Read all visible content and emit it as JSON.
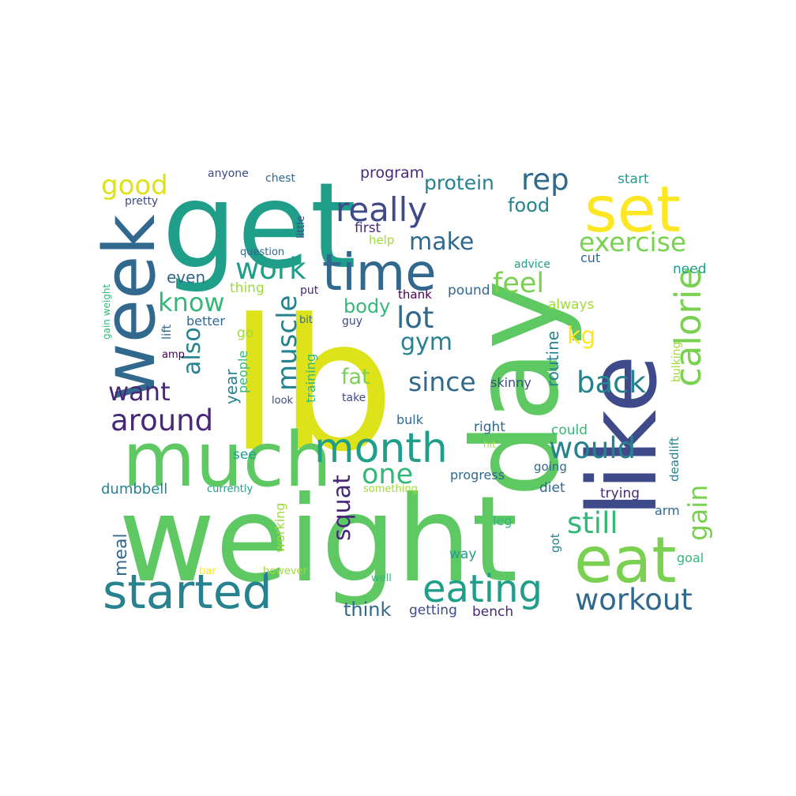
{
  "words": [
    {
      "text": "weight",
      "color": "#5ec962"
    },
    {
      "text": "lb",
      "color": "#dde318"
    },
    {
      "text": "day",
      "color": "#5ec962"
    },
    {
      "text": "get",
      "color": "#1f9e89"
    },
    {
      "text": "like",
      "color": "#3e4a89"
    },
    {
      "text": "much",
      "color": "#5ec962"
    },
    {
      "text": "week",
      "color": "#31688e"
    },
    {
      "text": "set",
      "color": "#fde725"
    },
    {
      "text": "time",
      "color": "#31688e"
    },
    {
      "text": "eat",
      "color": "#7ad151"
    },
    {
      "text": "started",
      "color": "#26828e"
    },
    {
      "text": "month",
      "color": "#1f9e89"
    },
    {
      "text": "calorie",
      "color": "#7ad151"
    },
    {
      "text": "eating",
      "color": "#1f9e89"
    },
    {
      "text": "really",
      "color": "#3e4a89"
    },
    {
      "text": "workout",
      "color": "#31688e"
    },
    {
      "text": "around",
      "color": "#482878"
    },
    {
      "text": "exercise",
      "color": "#7ad151"
    },
    {
      "text": "back",
      "color": "#26828e"
    },
    {
      "text": "would",
      "color": "#26828e"
    },
    {
      "text": "still",
      "color": "#35b779"
    },
    {
      "text": "work",
      "color": "#1f9e89"
    },
    {
      "text": "muscle",
      "color": "#26828e"
    },
    {
      "text": "gain",
      "color": "#7ad151"
    },
    {
      "text": "also",
      "color": "#26828e"
    },
    {
      "text": "know",
      "color": "#35b779"
    },
    {
      "text": "feel",
      "color": "#7ad151"
    },
    {
      "text": "lot",
      "color": "#31688e"
    },
    {
      "text": "rep",
      "color": "#31688e"
    },
    {
      "text": "make",
      "color": "#31688e"
    },
    {
      "text": "one",
      "color": "#35b779"
    },
    {
      "text": "since",
      "color": "#31688e"
    },
    {
      "text": "want",
      "color": "#482878"
    },
    {
      "text": "good",
      "color": "#dde318"
    },
    {
      "text": "gym",
      "color": "#26828e"
    },
    {
      "text": "squat",
      "color": "#482878"
    },
    {
      "text": "protein",
      "color": "#26828e"
    },
    {
      "text": "body",
      "color": "#35b779"
    },
    {
      "text": "fat",
      "color": "#7ad151"
    },
    {
      "text": "kg",
      "color": "#fde725"
    },
    {
      "text": "food",
      "color": "#26828e"
    },
    {
      "text": "think",
      "color": "#31688e"
    },
    {
      "text": "year",
      "color": "#26828e"
    },
    {
      "text": "routine",
      "color": "#26828e"
    },
    {
      "text": "meal",
      "color": "#31688e"
    },
    {
      "text": "even",
      "color": "#31688e"
    },
    {
      "text": "program",
      "color": "#482878"
    },
    {
      "text": "dumbbell",
      "color": "#26828e"
    },
    {
      "text": "bench",
      "color": "#482878"
    },
    {
      "text": "getting",
      "color": "#3e4a89"
    },
    {
      "text": "trying",
      "color": "#482878"
    },
    {
      "text": "progress",
      "color": "#31688e"
    },
    {
      "text": "right",
      "color": "#31688e"
    },
    {
      "text": "skinny",
      "color": "#3e4a89"
    },
    {
      "text": "diet",
      "color": "#31688e"
    },
    {
      "text": "people",
      "color": "#35b779"
    },
    {
      "text": "training",
      "color": "#35b779"
    },
    {
      "text": "working",
      "color": "#a0da39"
    },
    {
      "text": "deadlift",
      "color": "#26828e"
    },
    {
      "text": "arm",
      "color": "#31688e"
    },
    {
      "text": "see",
      "color": "#1f9e89"
    },
    {
      "text": "pound",
      "color": "#31688e"
    },
    {
      "text": "first",
      "color": "#482878"
    },
    {
      "text": "could",
      "color": "#35b779"
    },
    {
      "text": "bulk",
      "color": "#31688e"
    },
    {
      "text": "going",
      "color": "#31688e"
    },
    {
      "text": "way",
      "color": "#1f9e89"
    },
    {
      "text": "got",
      "color": "#26828e"
    },
    {
      "text": "leg",
      "color": "#35b779"
    },
    {
      "text": "go",
      "color": "#a0da39"
    },
    {
      "text": "start",
      "color": "#1f9e89"
    },
    {
      "text": "cut",
      "color": "#31688e"
    },
    {
      "text": "need",
      "color": "#1f9e89"
    },
    {
      "text": "goal",
      "color": "#35b779"
    },
    {
      "text": "always",
      "color": "#a0da39"
    },
    {
      "text": "better",
      "color": "#31688e"
    },
    {
      "text": "thank",
      "color": "#440154"
    },
    {
      "text": "help",
      "color": "#a0da39"
    },
    {
      "text": "thing",
      "color": "#a0da39"
    },
    {
      "text": "bulking",
      "color": "#a0da39"
    },
    {
      "text": "lift",
      "color": "#31688e"
    },
    {
      "text": "anyone",
      "color": "#3e4a89"
    },
    {
      "text": "chest",
      "color": "#31688e"
    },
    {
      "text": "pretty",
      "color": "#3e4a89"
    },
    {
      "text": "little",
      "color": "#3e4a89"
    },
    {
      "text": "question",
      "color": "#31688e"
    },
    {
      "text": "put",
      "color": "#482878"
    },
    {
      "text": "advice",
      "color": "#1f9e89"
    },
    {
      "text": "gain weight",
      "color": "#35b779"
    },
    {
      "text": "bit",
      "color": "#31688e"
    },
    {
      "text": "guy",
      "color": "#3e4a89"
    },
    {
      "text": "amp",
      "color": "#440154"
    },
    {
      "text": "look",
      "color": "#3e4a89"
    },
    {
      "text": "take",
      "color": "#3e4a89"
    },
    {
      "text": "hit",
      "color": "#a0da39"
    },
    {
      "text": "currently",
      "color": "#1f9e89"
    },
    {
      "text": "something",
      "color": "#a0da39"
    },
    {
      "text": "bar",
      "color": "#fde725"
    },
    {
      "text": "however",
      "color": "#a0da39"
    },
    {
      "text": "well",
      "color": "#35b779"
    }
  ]
}
